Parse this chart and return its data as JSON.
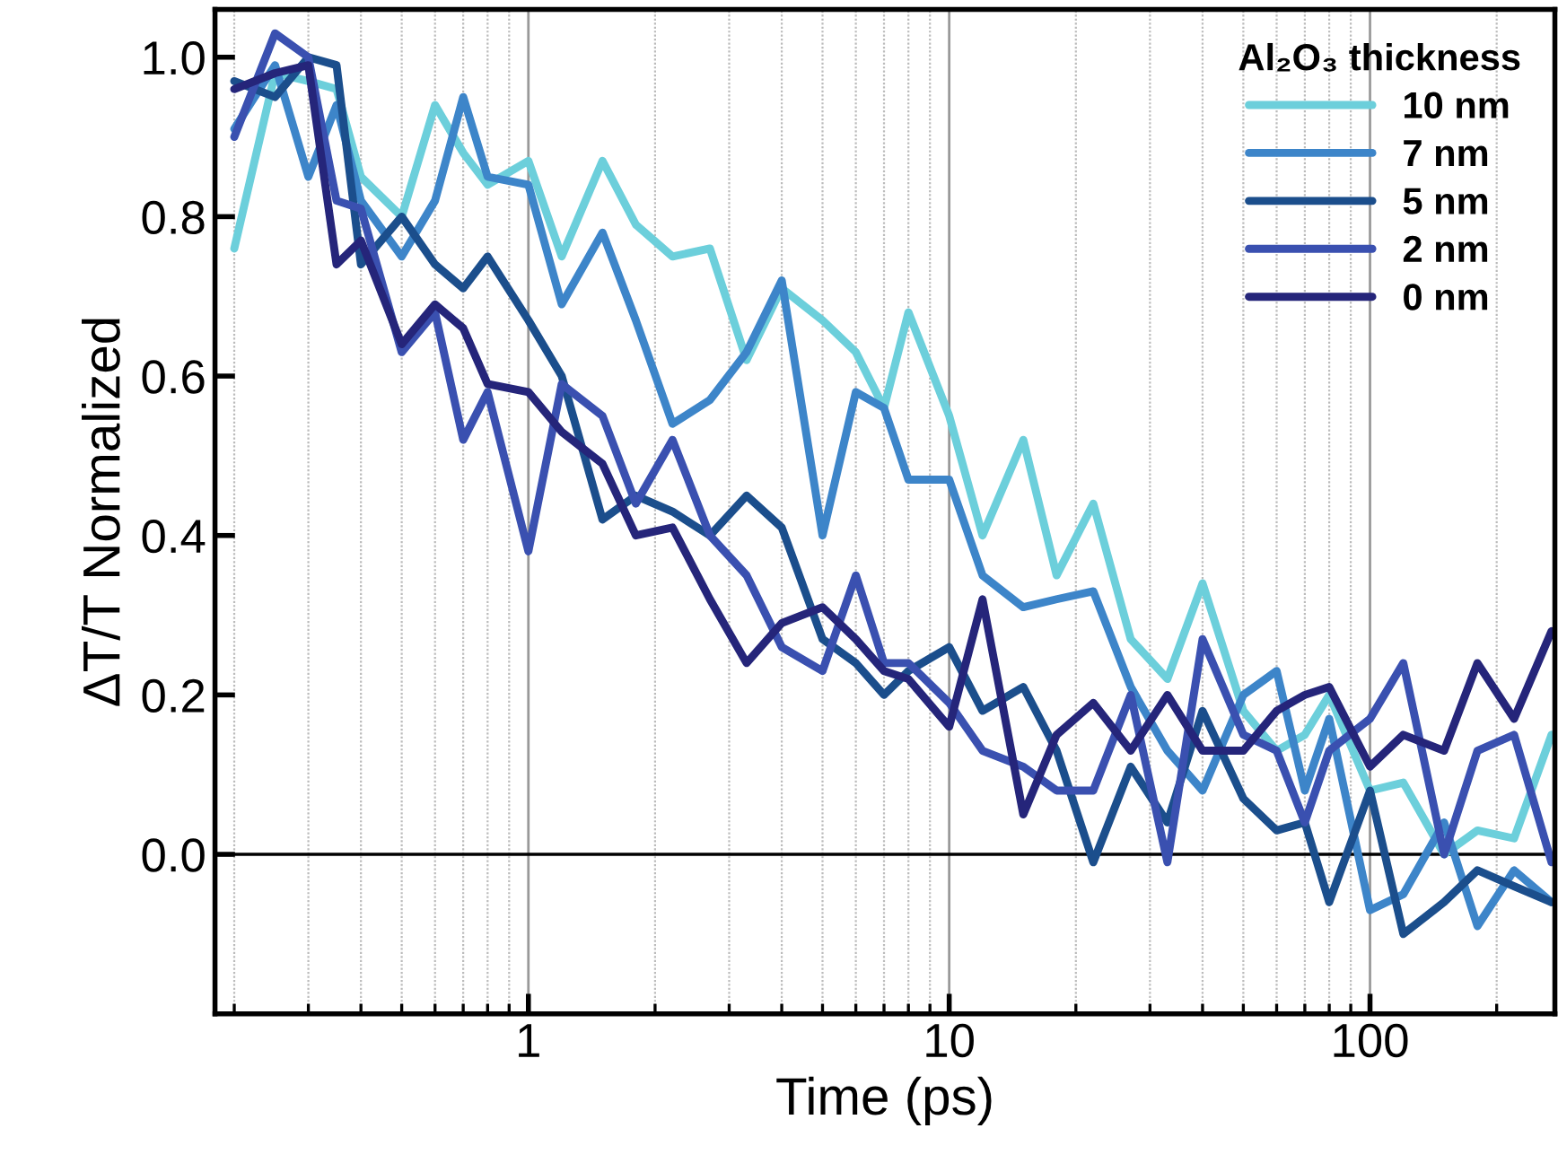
{
  "chart_data": {
    "type": "line",
    "xlabel": "Time (ps)",
    "ylabel": "ΔT/T Normalized",
    "legend_title": "Al₂O₃ thickness",
    "x": [
      0.2,
      0.25,
      0.3,
      0.35,
      0.4,
      0.5,
      0.6,
      0.7,
      0.8,
      1,
      1.2,
      1.5,
      1.8,
      2.2,
      2.7,
      3.3,
      4,
      5,
      6,
      7,
      8,
      10,
      12,
      15,
      18,
      22,
      27,
      33,
      40,
      50,
      60,
      70,
      80,
      100,
      120,
      150,
      180,
      220,
      270
    ],
    "series": [
      {
        "name": "10 nm",
        "color": "#6ccfdb",
        "values": [
          0.76,
          0.98,
          0.97,
          0.96,
          0.85,
          0.8,
          0.94,
          0.88,
          0.84,
          0.87,
          0.75,
          0.87,
          0.79,
          0.75,
          0.76,
          0.62,
          0.71,
          0.67,
          0.63,
          0.56,
          0.68,
          0.55,
          0.4,
          0.52,
          0.35,
          0.44,
          0.27,
          0.22,
          0.34,
          0.18,
          0.13,
          0.15,
          0.2,
          0.08,
          0.09,
          0.0,
          0.03,
          0.02,
          0.15
        ]
      },
      {
        "name": "7 nm",
        "color": "#3d85c9",
        "values": [
          0.91,
          0.99,
          0.85,
          0.94,
          0.82,
          0.75,
          0.82,
          0.95,
          0.85,
          0.84,
          0.69,
          0.78,
          0.67,
          0.54,
          0.57,
          0.63,
          0.72,
          0.4,
          0.58,
          0.56,
          0.47,
          0.47,
          0.35,
          0.31,
          0.32,
          0.33,
          0.21,
          0.13,
          0.08,
          0.2,
          0.23,
          0.08,
          0.17,
          -0.07,
          -0.05,
          0.04,
          -0.09,
          -0.02,
          -0.06
        ]
      },
      {
        "name": "5 nm",
        "color": "#1b4e8c",
        "values": [
          0.97,
          0.95,
          1.0,
          0.99,
          0.74,
          0.8,
          0.74,
          0.71,
          0.75,
          0.67,
          0.6,
          0.42,
          0.45,
          0.43,
          0.4,
          0.45,
          0.41,
          0.27,
          0.24,
          0.2,
          0.23,
          0.26,
          0.18,
          0.21,
          0.13,
          -0.01,
          0.11,
          0.04,
          0.18,
          0.07,
          0.03,
          0.04,
          -0.06,
          0.08,
          -0.1,
          -0.06,
          -0.02,
          -0.04,
          -0.06
        ]
      },
      {
        "name": "2 nm",
        "color": "#3a50b0",
        "values": [
          0.9,
          1.03,
          1.0,
          0.82,
          0.81,
          0.63,
          0.68,
          0.52,
          0.58,
          0.38,
          0.59,
          0.55,
          0.44,
          0.52,
          0.4,
          0.35,
          0.26,
          0.23,
          0.35,
          0.24,
          0.24,
          0.19,
          0.13,
          0.11,
          0.08,
          0.08,
          0.2,
          -0.01,
          0.27,
          0.15,
          0.13,
          0.04,
          0.13,
          0.17,
          0.24,
          0.0,
          0.13,
          0.15,
          -0.01
        ]
      },
      {
        "name": "0 nm",
        "color": "#25257a",
        "values": [
          0.96,
          0.98,
          0.99,
          0.74,
          0.77,
          0.64,
          0.69,
          0.66,
          0.59,
          0.58,
          0.53,
          0.49,
          0.4,
          0.41,
          0.32,
          0.24,
          0.29,
          0.31,
          0.27,
          0.23,
          0.22,
          0.16,
          0.32,
          0.05,
          0.15,
          0.19,
          0.13,
          0.2,
          0.13,
          0.13,
          0.18,
          0.2,
          0.21,
          0.11,
          0.15,
          0.13,
          0.24,
          0.17,
          0.28
        ]
      }
    ],
    "log": "x",
    "xlim": [
      0.18,
      275
    ],
    "xticks": [
      1,
      10,
      100
    ],
    "ylim": [
      -0.2,
      1.06
    ],
    "yticks": [
      {
        "value": 0,
        "label": "0.0"
      },
      {
        "value": 0.2,
        "label": "0.2"
      },
      {
        "value": 0.4,
        "label": "0.4"
      },
      {
        "value": 0.6,
        "label": "0.6"
      },
      {
        "value": 0.8,
        "label": "0.8"
      },
      {
        "value": 1,
        "label": "1.0"
      }
    ],
    "ref_lines": [
      {
        "axis": "y",
        "value": 0,
        "color": "#000000"
      }
    ],
    "grid": "x",
    "legend": "top right",
    "marker": "none",
    "line_style": "solid"
  }
}
